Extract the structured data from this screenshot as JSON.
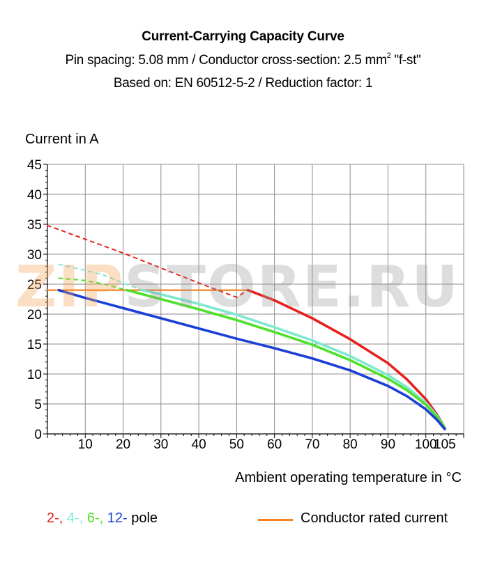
{
  "title": "Current-Carrying Capacity Curve",
  "subtitle_line1": "Pin spacing: 5.08 mm / Conductor cross-section: 2.5 mm",
  "subtitle_line1_sup": "2",
  "subtitle_line1_tail": " \"f-st\"",
  "subtitle_line2": "Based on: EN 60512-5-2 / Reduction factor: 1",
  "watermark": {
    "part1": "ZIP",
    "part2": "STORE.RU"
  },
  "legend": {
    "poles": [
      {
        "text": "2-",
        "color": "#e8201c"
      },
      {
        "text": ", ",
        "color": "#e8201c"
      },
      {
        "text": "4-",
        "color": "#7fe8d0"
      },
      {
        "text": ", ",
        "color": "#7fe8d0"
      },
      {
        "text": "6-",
        "color": "#4fe02a"
      },
      {
        "text": ", ",
        "color": "#4fe02a"
      },
      {
        "text": "12-",
        "color": "#1b3fd6"
      },
      {
        "text": " pole",
        "color": "#000000"
      }
    ],
    "rated_label": "Conductor rated current",
    "rated_color": "#f58220"
  },
  "chart_data": {
    "type": "line",
    "title": "Current-Carrying Capacity Curve",
    "xlabel": "Ambient operating temperature in °C",
    "ylabel": "Current in A",
    "xlim": [
      0,
      110
    ],
    "ylim": [
      0,
      45
    ],
    "xticks": [
      10,
      20,
      30,
      40,
      50,
      60,
      70,
      80,
      90,
      100,
      105
    ],
    "yticks": [
      0,
      5,
      10,
      15,
      20,
      25,
      30,
      35,
      40,
      45
    ],
    "grid": true,
    "legend_position": "bottom",
    "series": [
      {
        "name": "2-",
        "color": "#e8201c",
        "style": "solid",
        "x": [
          53,
          60,
          70,
          80,
          90,
          95,
          100,
          103,
          105
        ],
        "y": [
          24,
          22.3,
          19.3,
          15.8,
          11.8,
          9.1,
          5.8,
          3.2,
          1
        ]
      },
      {
        "name": "2-",
        "color": "#e8201c",
        "style": "dashed",
        "x": [
          0,
          10,
          20,
          30,
          40,
          50,
          53
        ],
        "y": [
          34.8,
          32.5,
          30.2,
          27.7,
          25.2,
          22.8,
          24
        ]
      },
      {
        "name": "4-",
        "color": "#7fe8d0",
        "style": "solid",
        "x": [
          25,
          30,
          40,
          50,
          60,
          70,
          80,
          90,
          95,
          100,
          103,
          105
        ],
        "y": [
          24,
          23.3,
          21.7,
          19.9,
          17.8,
          15.6,
          13,
          9.8,
          7.8,
          5.2,
          3,
          1
        ]
      },
      {
        "name": "4-",
        "color": "#7fe8d0",
        "style": "dashed",
        "x": [
          3,
          10,
          15,
          20,
          25
        ],
        "y": [
          28.3,
          27.3,
          26.5,
          25.2,
          24
        ]
      },
      {
        "name": "6-",
        "color": "#4fe02a",
        "style": "solid",
        "x": [
          21,
          30,
          40,
          50,
          60,
          70,
          80,
          90,
          95,
          100,
          103,
          105
        ],
        "y": [
          24,
          22.5,
          20.8,
          19,
          17,
          14.9,
          12.3,
          9.2,
          7.3,
          4.9,
          2.8,
          1
        ]
      },
      {
        "name": "6-",
        "color": "#4fe02a",
        "style": "dashed",
        "x": [
          3,
          10,
          15,
          21
        ],
        "y": [
          26,
          25.6,
          25,
          24
        ]
      },
      {
        "name": "12-",
        "color": "#1b3fd6",
        "style": "solid",
        "x": [
          3,
          10,
          20,
          30,
          40,
          50,
          60,
          70,
          80,
          90,
          95,
          100,
          103,
          105
        ],
        "y": [
          24,
          22.7,
          21,
          19.3,
          17.6,
          15.9,
          14.3,
          12.6,
          10.6,
          8,
          6.3,
          4.1,
          2.3,
          0.8
        ]
      },
      {
        "name": "Conductor rated current",
        "color": "#f58220",
        "style": "solid",
        "x": [
          0,
          53
        ],
        "y": [
          24,
          24
        ]
      }
    ]
  }
}
